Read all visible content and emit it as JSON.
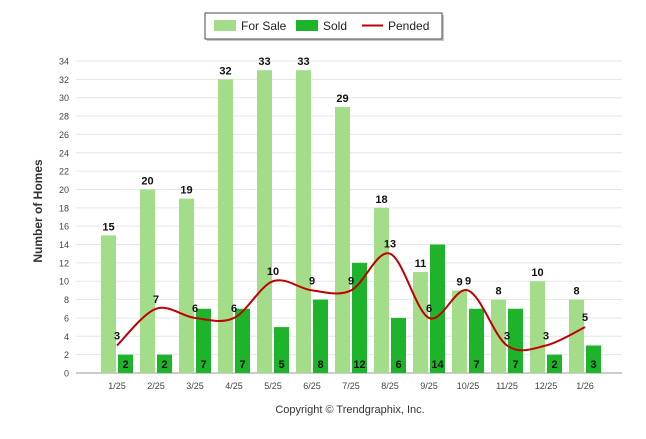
{
  "chart_data": {
    "type": "bar",
    "categories": [
      "1/25",
      "2/25",
      "3/25",
      "4/25",
      "5/25",
      "6/25",
      "7/25",
      "8/25",
      "9/25",
      "10/25",
      "11/25",
      "12/25",
      "1/26"
    ],
    "series": [
      {
        "name": "For Sale",
        "kind": "bar",
        "color": "#a3dd8a",
        "values": [
          15,
          20,
          19,
          32,
          33,
          33,
          29,
          18,
          11,
          9,
          8,
          10,
          8
        ]
      },
      {
        "name": "Sold",
        "kind": "bar",
        "color": "#1db32a",
        "values": [
          2,
          2,
          7,
          7,
          5,
          8,
          12,
          6,
          14,
          7,
          7,
          2,
          3
        ]
      },
      {
        "name": "Pended",
        "kind": "line",
        "color": "#c00000",
        "values": [
          3,
          7,
          6,
          6,
          10,
          9,
          9,
          13,
          6,
          9,
          3,
          3,
          5
        ]
      }
    ],
    "title": "",
    "xlabel": "",
    "ylabel": "Number of Homes",
    "ylim": [
      0,
      34
    ],
    "yticks": [
      0,
      2,
      4,
      6,
      8,
      10,
      12,
      14,
      16,
      18,
      20,
      22,
      24,
      26,
      28,
      30,
      32,
      34
    ],
    "grid": true,
    "legend_position": "top-center",
    "footer": "Copyright © Trendgraphix, Inc."
  }
}
